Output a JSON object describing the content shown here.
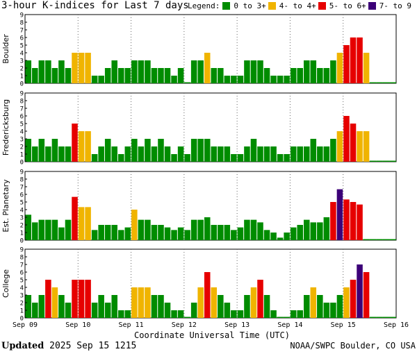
{
  "title": "3-hour K-indices for Last 7 days",
  "legend": {
    "label": "Legend:",
    "items": [
      {
        "label": "0 to 3+",
        "color": "#008c00"
      },
      {
        "label": "4- to 4+",
        "color": "#f0b400"
      },
      {
        "label": "5- to 6+",
        "color": "#e60000"
      },
      {
        "label": "7- to 9",
        "color": "#3c0078"
      }
    ]
  },
  "footer": {
    "updated_label": "Updated",
    "updated_value": "2025 Sep 15 1215",
    "source": "NOAA/SWPC Boulder, CO USA"
  },
  "chart_data": [
    {
      "type": "bar",
      "ylabel": "Boulder",
      "ylim": [
        0,
        9
      ],
      "yticks": [
        0,
        1,
        2,
        3,
        4,
        5,
        6,
        7,
        8,
        9
      ],
      "x_tick_labels": [
        "Sep 09",
        "Sep 10",
        "Sep 11",
        "Sep 12",
        "Sep 13",
        "Sep 14",
        "Sep 15",
        "Sep 16"
      ],
      "values": [
        3,
        2,
        3,
        3,
        2,
        3,
        2,
        4,
        4,
        4,
        1,
        1,
        2,
        3,
        2,
        2,
        3,
        3,
        3,
        2,
        2,
        2,
        1,
        2,
        0,
        3,
        3,
        4,
        2,
        2,
        1,
        1,
        1,
        3,
        3,
        3,
        2,
        1,
        1,
        1,
        2,
        2,
        3,
        3,
        2,
        2,
        3,
        4,
        5,
        6,
        6,
        4,
        0,
        0,
        0,
        0
      ]
    },
    {
      "type": "bar",
      "ylabel": "Fredericksburg",
      "ylim": [
        0,
        9
      ],
      "yticks": [
        0,
        1,
        2,
        3,
        4,
        5,
        6,
        7,
        8,
        9
      ],
      "x_tick_labels": [
        "Sep 09",
        "Sep 10",
        "Sep 11",
        "Sep 12",
        "Sep 13",
        "Sep 14",
        "Sep 15",
        "Sep 16"
      ],
      "values": [
        3,
        2,
        3,
        2,
        3,
        2,
        2,
        5,
        4,
        4,
        1,
        2,
        3,
        2,
        1,
        2,
        3,
        2,
        3,
        2,
        3,
        2,
        1,
        2,
        1,
        3,
        3,
        3,
        2,
        2,
        2,
        1,
        1,
        2,
        3,
        2,
        2,
        2,
        1,
        1,
        2,
        2,
        2,
        3,
        2,
        2,
        3,
        4,
        6,
        5,
        4,
        4,
        0,
        0,
        0,
        0
      ]
    },
    {
      "type": "bar",
      "ylabel": "Est. Planetary",
      "ylim": [
        0,
        9
      ],
      "yticks": [
        0,
        1,
        2,
        3,
        4,
        5,
        6,
        7,
        8,
        9
      ],
      "x_tick_labels": [
        "Sep 09",
        "Sep 10",
        "Sep 11",
        "Sep 12",
        "Sep 13",
        "Sep 14",
        "Sep 15",
        "Sep 16"
      ],
      "values": [
        3.33,
        2.33,
        2.67,
        2.67,
        2.67,
        1.67,
        2.67,
        5.67,
        4.33,
        4.33,
        1.33,
        2,
        2,
        2,
        1.33,
        1.67,
        4,
        2.67,
        2.67,
        2,
        2,
        1.67,
        1.33,
        1.67,
        1.33,
        2.67,
        2.67,
        3,
        2,
        2,
        2,
        1.33,
        1.67,
        2.67,
        2.67,
        2.33,
        1.33,
        1,
        0.33,
        1,
        1.67,
        2,
        2.67,
        2.33,
        2.33,
        3,
        5,
        6.67,
        5.33,
        5,
        4.67,
        0,
        0,
        0,
        0,
        0
      ]
    },
    {
      "type": "bar",
      "ylabel": "College",
      "ylim": [
        0,
        9
      ],
      "yticks": [
        0,
        1,
        2,
        3,
        4,
        5,
        6,
        7,
        8,
        9
      ],
      "x_tick_labels": [
        "Sep 09",
        "Sep 10",
        "Sep 11",
        "Sep 12",
        "Sep 13",
        "Sep 14",
        "Sep 15",
        "Sep 16"
      ],
      "values": [
        3,
        2,
        3,
        5,
        4,
        3,
        2,
        5,
        5,
        5,
        2,
        3,
        2,
        3,
        1,
        1,
        4,
        4,
        4,
        3,
        3,
        2,
        1,
        1,
        0,
        2,
        4,
        6,
        4,
        3,
        2,
        1,
        1,
        3,
        4,
        5,
        3,
        1,
        0,
        0,
        1,
        1,
        3,
        4,
        3,
        2,
        2,
        3,
        4,
        5,
        7,
        6,
        0,
        0,
        0,
        0
      ]
    }
  ],
  "x_axis_title": "Coordinate Universal Time (UTC)"
}
